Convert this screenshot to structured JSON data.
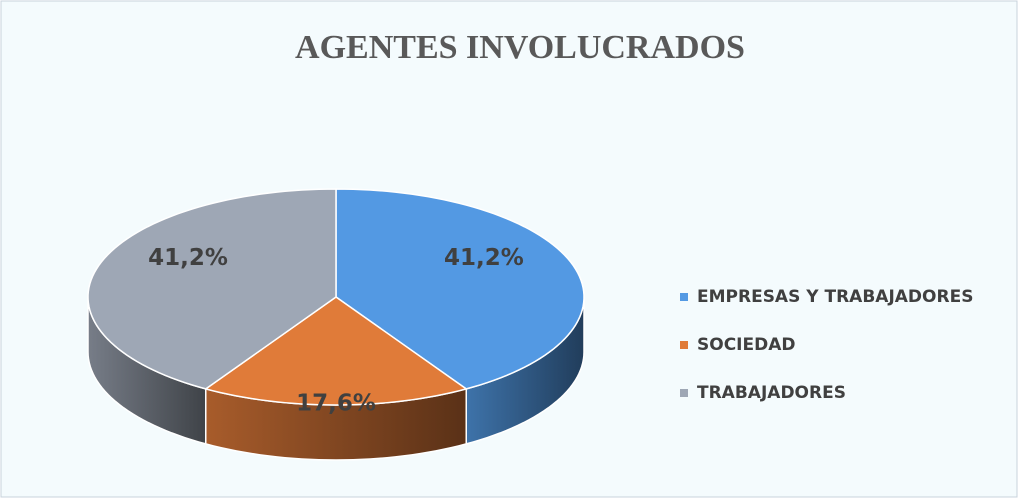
{
  "chart_data": {
    "type": "pie3d",
    "title": "AGENTES INVOLUCRADOS",
    "categories": [
      "EMPRESAS Y TRABAJADORES",
      "SOCIEDAD",
      "TRABAJADORES"
    ],
    "values": [
      41.2,
      17.6,
      41.2
    ],
    "value_labels": [
      "41,2%",
      "17,6%",
      "41,2%"
    ],
    "colors": [
      "#5399e3",
      "#e07b39",
      "#9ea7b5"
    ],
    "legend": "right"
  }
}
